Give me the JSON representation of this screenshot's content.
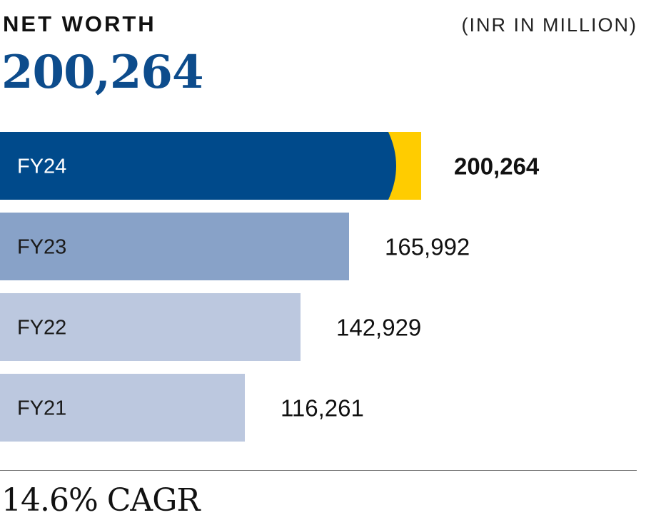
{
  "header": {
    "title": "NET WORTH",
    "unit": "(INR IN MILLION)",
    "headline_value": "200,264"
  },
  "footer": {
    "cagr": "14.6% CAGR"
  },
  "colors": {
    "highlight_bar": "#004a8b",
    "highlight_accent": "#ffcc00",
    "fy23_bar": "#88a2c8",
    "older_bar": "#bcc8df",
    "headline": "#0d4c8c"
  },
  "chart_data": {
    "type": "bar",
    "orientation": "horizontal",
    "categories": [
      "FY24",
      "FY23",
      "FY22",
      "FY21"
    ],
    "values": [
      200264,
      165992,
      142929,
      116261
    ],
    "value_labels": [
      "200,264",
      "165,992",
      "142,929",
      "116,261"
    ],
    "highlight": "FY24",
    "title": "NET WORTH",
    "unit": "(INR IN MILLION)",
    "grid": false,
    "legend": "none"
  }
}
